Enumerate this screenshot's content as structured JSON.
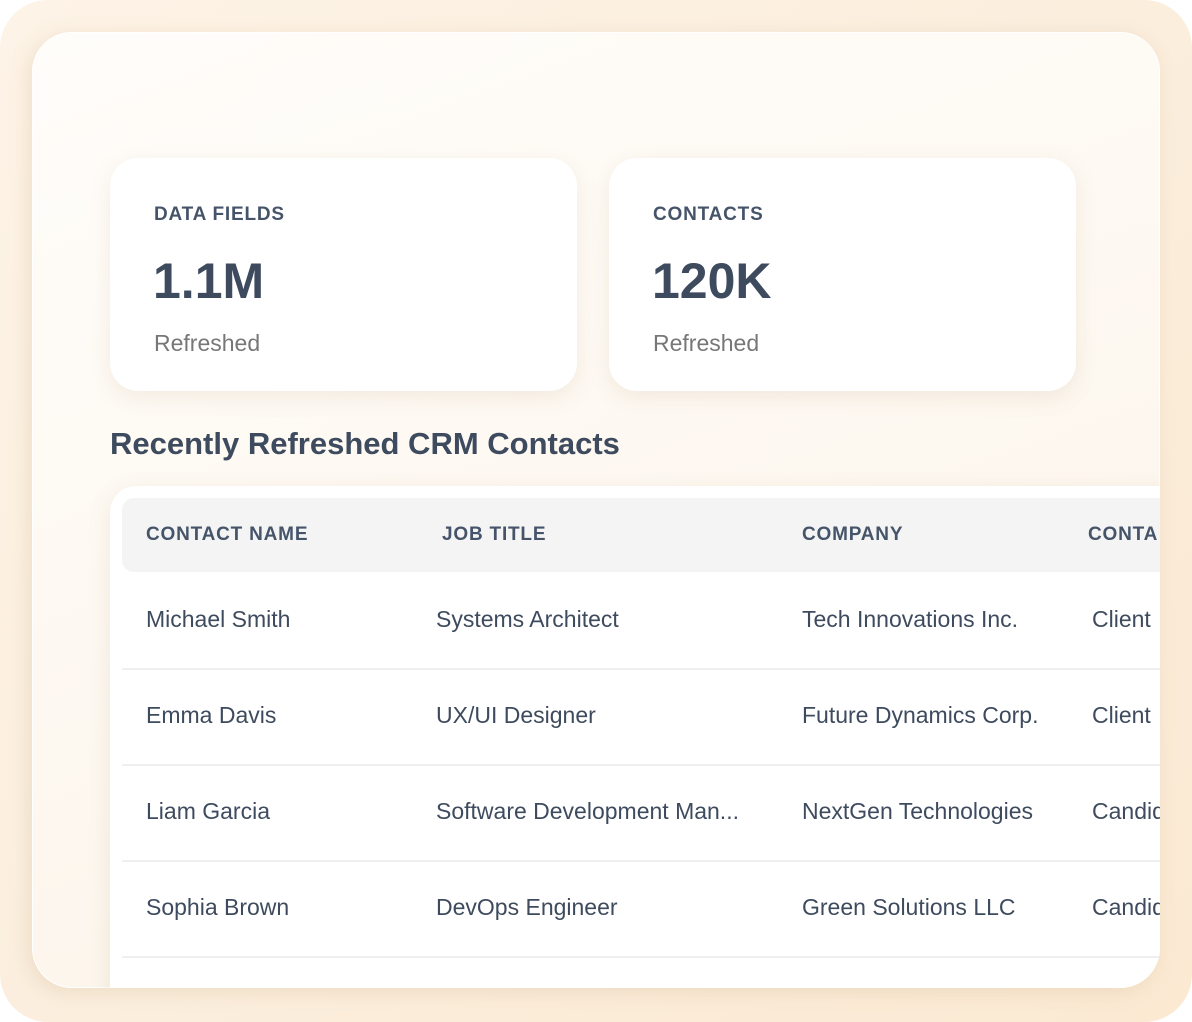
{
  "stats": [
    {
      "label": "DATA FIELDS",
      "value": "1.1M",
      "status": "Refreshed"
    },
    {
      "label": "CONTACTS",
      "value": "120K",
      "status": "Refreshed"
    }
  ],
  "section_title": "Recently Refreshed CRM Contacts",
  "table": {
    "columns": [
      "CONTACT NAME",
      "JOB TITLE",
      "COMPANY",
      "CONTA"
    ],
    "rows": [
      [
        "Michael Smith",
        "Systems Architect",
        "Tech Innovations Inc.",
        "Client"
      ],
      [
        "Emma Davis",
        "UX/UI Designer",
        "Future Dynamics Corp.",
        "Client"
      ],
      [
        "Liam Garcia",
        "Software Development Man...",
        "NextGen Technologies",
        "Candid"
      ],
      [
        "Sophia Brown",
        "DevOps Engineer",
        "Green Solutions LLC",
        "Candid"
      ]
    ]
  }
}
